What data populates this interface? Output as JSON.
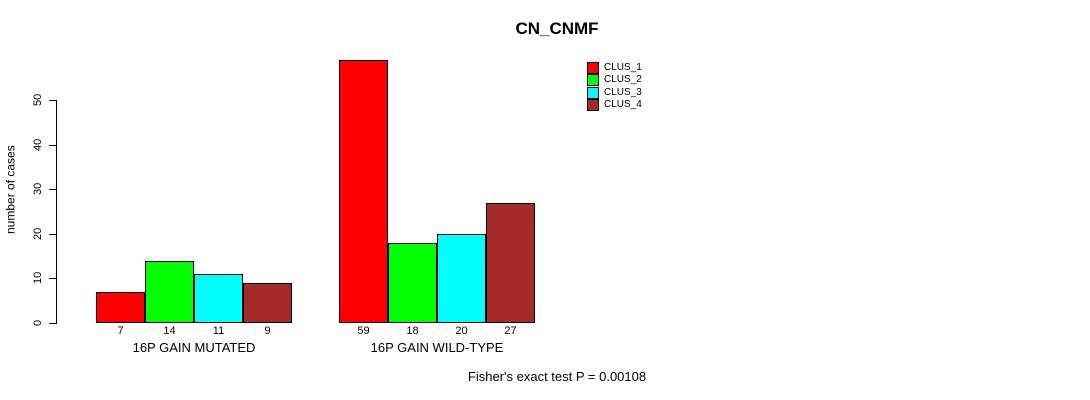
{
  "title": "CN_CNMF",
  "footer": "Fisher's exact test P = 0.00108",
  "chart_data": {
    "type": "bar",
    "title": "CN_CNMF",
    "xlabel": "",
    "ylabel": "number of cases",
    "ylim": [
      0,
      59
    ],
    "yticks": [
      0,
      10,
      20,
      30,
      40,
      50
    ],
    "grid": false,
    "legend_position": "top-right",
    "categories": [
      "16P GAIN MUTATED",
      "16P GAIN WILD-TYPE"
    ],
    "series": [
      {
        "name": "CLUS_1",
        "color": "#ff0000",
        "values": [
          7,
          59
        ]
      },
      {
        "name": "CLUS_2",
        "color": "#00ff00",
        "values": [
          14,
          18
        ]
      },
      {
        "name": "CLUS_3",
        "color": "#00ffff",
        "values": [
          11,
          20
        ]
      },
      {
        "name": "CLUS_4",
        "color": "#a52a2a",
        "values": [
          9,
          27
        ]
      }
    ],
    "bar_value_labels": [
      [
        7,
        14,
        11,
        9
      ],
      [
        59,
        18,
        20,
        27
      ]
    ],
    "annotation": "Fisher's exact test P = 0.00108"
  }
}
